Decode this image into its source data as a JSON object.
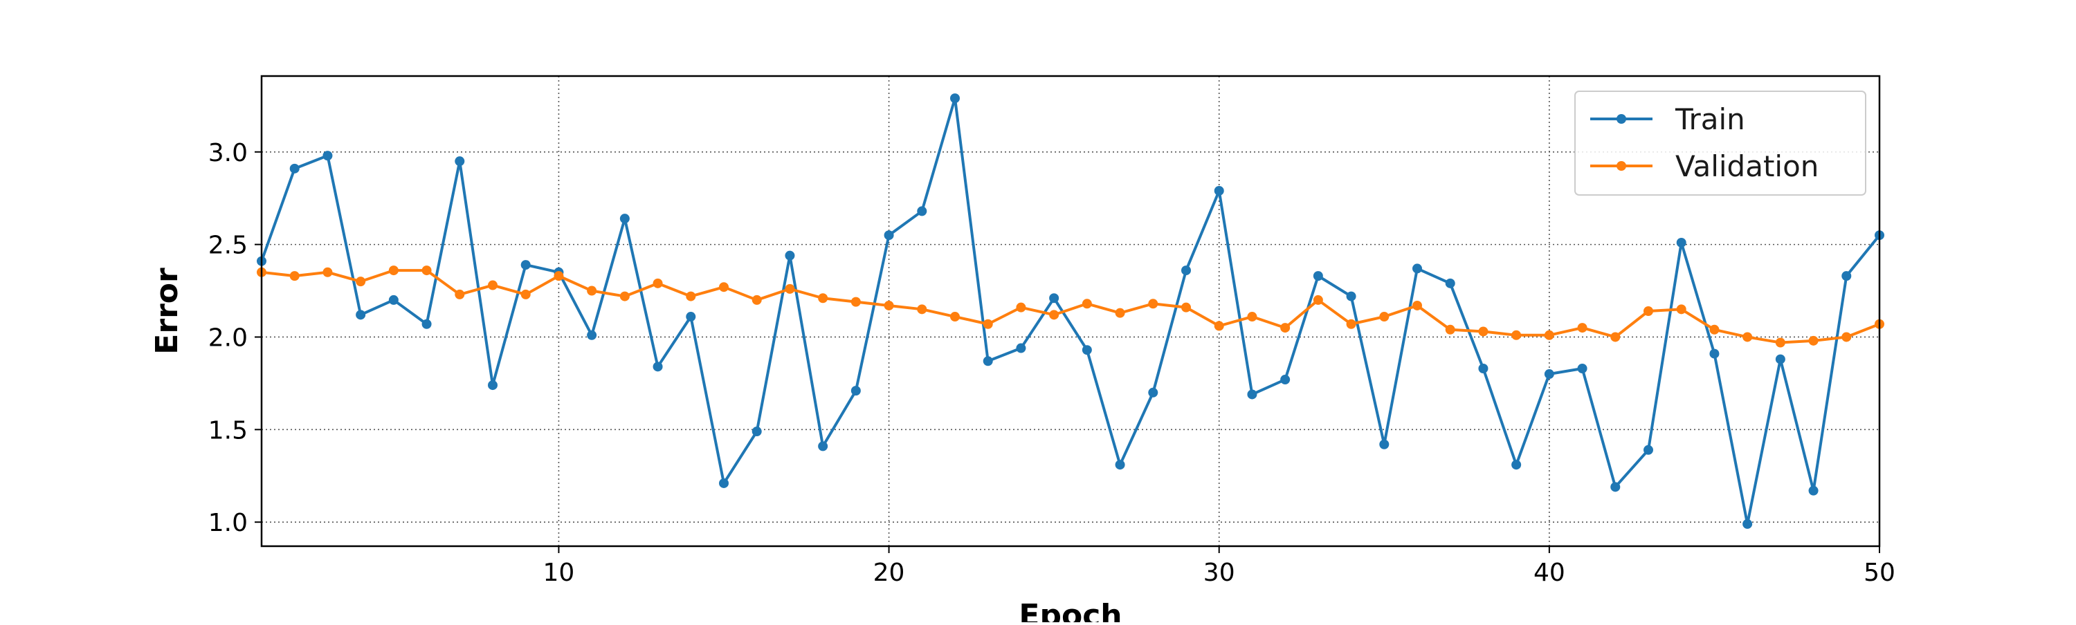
{
  "chart_data": {
    "type": "line",
    "title": "",
    "xlabel": "Epoch",
    "ylabel": "Error",
    "xlim": [
      1,
      50
    ],
    "ylim": [
      0.87,
      3.41
    ],
    "xticks": [
      10,
      20,
      30,
      40,
      50
    ],
    "yticks": [
      1.0,
      1.5,
      2.0,
      2.5,
      3.0
    ],
    "xtick_labels": [
      "10",
      "20",
      "30",
      "40",
      "50"
    ],
    "ytick_labels": [
      "1.0",
      "1.5",
      "2.0",
      "2.5",
      "3.0"
    ],
    "grid": "on, dotted",
    "legend_position": "top-right",
    "x": [
      1,
      2,
      3,
      4,
      5,
      6,
      7,
      8,
      9,
      10,
      11,
      12,
      13,
      14,
      15,
      16,
      17,
      18,
      19,
      20,
      21,
      22,
      23,
      24,
      25,
      26,
      27,
      28,
      29,
      30,
      31,
      32,
      33,
      34,
      35,
      36,
      37,
      38,
      39,
      40,
      41,
      42,
      43,
      44,
      45,
      46,
      47,
      48,
      49,
      50
    ],
    "series": [
      {
        "name": "Train",
        "color": "#1f77b4",
        "values": [
          2.41,
          2.91,
          2.98,
          2.12,
          2.2,
          2.07,
          2.95,
          1.74,
          2.39,
          2.35,
          2.01,
          2.64,
          1.84,
          2.11,
          1.21,
          1.49,
          2.44,
          1.41,
          1.71,
          2.55,
          2.68,
          3.29,
          1.87,
          1.94,
          2.21,
          1.93,
          1.31,
          1.7,
          2.36,
          2.79,
          1.69,
          1.77,
          2.33,
          2.22,
          1.42,
          2.37,
          2.29,
          1.83,
          1.31,
          1.8,
          1.83,
          1.19,
          1.39,
          2.51,
          1.91,
          0.99,
          1.88,
          1.17,
          2.33,
          2.55
        ]
      },
      {
        "name": "Validation",
        "color": "#ff7f0e",
        "values": [
          2.35,
          2.33,
          2.35,
          2.3,
          2.36,
          2.36,
          2.23,
          2.28,
          2.23,
          2.33,
          2.25,
          2.22,
          2.29,
          2.22,
          2.27,
          2.2,
          2.26,
          2.21,
          2.19,
          2.17,
          2.15,
          2.11,
          2.07,
          2.16,
          2.12,
          2.18,
          2.13,
          2.18,
          2.16,
          2.06,
          2.11,
          2.05,
          2.2,
          2.07,
          2.11,
          2.17,
          2.04,
          2.03,
          2.01,
          2.01,
          2.05,
          2.0,
          2.14,
          2.15,
          2.04,
          2.0,
          1.97,
          1.98,
          2.0,
          2.07
        ]
      }
    ]
  }
}
